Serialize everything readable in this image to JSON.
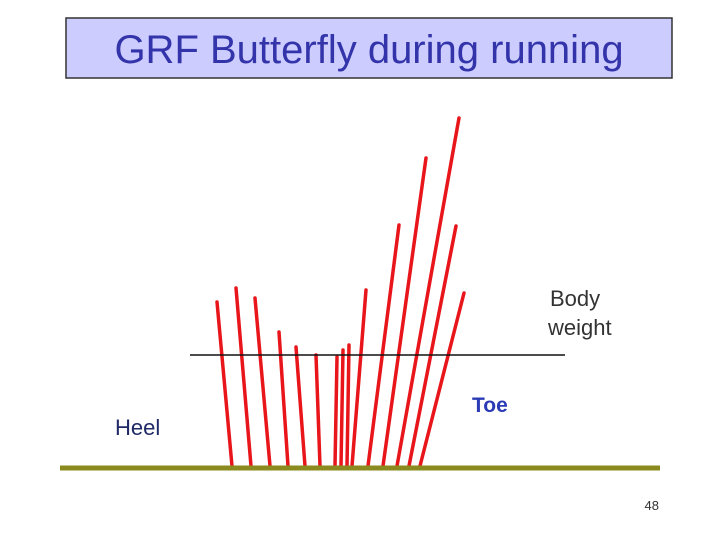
{
  "header": {
    "title": "GRF Butterfly during running"
  },
  "labels": {
    "body_weight": [
      "Body",
      "weight"
    ],
    "toe": "Toe",
    "heel": "Heel"
  },
  "footer": {
    "page_number": "48"
  }
}
